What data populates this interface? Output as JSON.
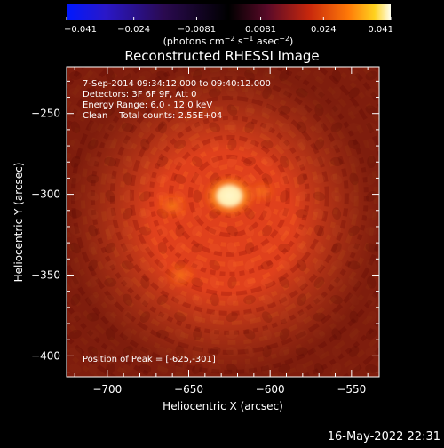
{
  "chart_data": {
    "type": "heatmap",
    "title": "Reconstructed RHESSI Image",
    "xlabel": "Heliocentric X (arcsec)",
    "ylabel": "Heliocentric Y (arcsec)",
    "xlim": [
      -725,
      -533
    ],
    "ylim": [
      -413,
      -221
    ],
    "x_ticks": [
      -700,
      -650,
      -600,
      -550
    ],
    "y_ticks": [
      -250,
      -300,
      -350,
      -400
    ],
    "x_tick_labels": [
      "−700",
      "−650",
      "−600",
      "−550"
    ],
    "y_tick_labels": [
      "−250",
      "−300",
      "−350",
      "−400"
    ],
    "annotations": [
      "7-Sep-2014 09:34:12.000 to 09:40:12.000",
      "Detectors: 3F 6F 9F, Att 0",
      "Energy Range: 6.0 - 12.0 keV",
      "Clean    Total counts: 2.55E+04"
    ],
    "peak_label": "Position of Peak = [-625,-301]",
    "peak": [
      -625,
      -301
    ],
    "secondary_sources": [
      {
        "x": -660,
        "y": -307,
        "intensity": 0.45
      },
      {
        "x": -655,
        "y": -350,
        "intensity": 0.4
      },
      {
        "x": -605,
        "y": -298,
        "intensity": 0.35
      }
    ],
    "colorbar": {
      "min": -0.041,
      "max": 0.041,
      "tick_labels": [
        "−0.041",
        "−0.024",
        "−0.0081",
        "0.0081",
        "0.024",
        "0.041"
      ],
      "tick_values": [
        -0.041,
        -0.024,
        -0.0081,
        0.0081,
        0.024,
        0.041
      ],
      "units_prefix": "(photons cm",
      "units_exp1": "−2",
      "units_mid": " s",
      "units_exp2": "−1",
      "units_mid2": " asec",
      "units_exp3": "−2",
      "units_suffix": ")"
    },
    "colors": {
      "background": "#000000",
      "text": "#ffffff",
      "field": "#e0401c",
      "peak_core": "#fffbe0"
    }
  },
  "footer": {
    "timestamp": "16-May-2022 22:31"
  }
}
